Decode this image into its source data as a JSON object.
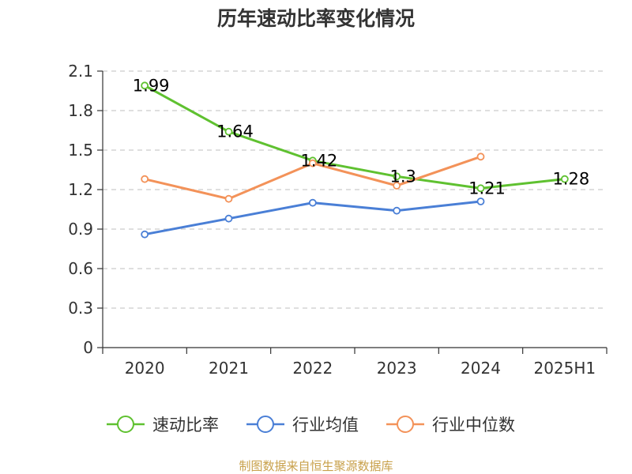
{
  "chart_data": {
    "type": "line",
    "title": "历年速动比率变化情况",
    "categories": [
      "2020",
      "2021",
      "2022",
      "2023",
      "2024",
      "2025H1"
    ],
    "ylim": [
      0,
      2.1
    ],
    "yticks": [
      "0",
      "0.3",
      "0.6",
      "0.9",
      "1.2",
      "1.5",
      "1.8",
      "2.1"
    ],
    "grid": true,
    "legend_position": "bottom",
    "series": [
      {
        "name": "速动比率",
        "color": "#5fc130",
        "values": [
          1.99,
          1.64,
          1.42,
          1.3,
          1.21,
          1.28
        ],
        "labels": [
          "1.99",
          "1.64",
          "1.42",
          "1.3",
          "1.21",
          "1.28"
        ]
      },
      {
        "name": "行业均值",
        "color": "#4a7fd6",
        "values": [
          0.86,
          0.98,
          1.1,
          1.04,
          1.11,
          null
        ]
      },
      {
        "name": "行业中位数",
        "color": "#f39259",
        "values": [
          1.28,
          1.13,
          1.4,
          1.23,
          1.45,
          null
        ]
      }
    ]
  },
  "footer": {
    "source": "制图数据来自恒生聚源数据库"
  }
}
